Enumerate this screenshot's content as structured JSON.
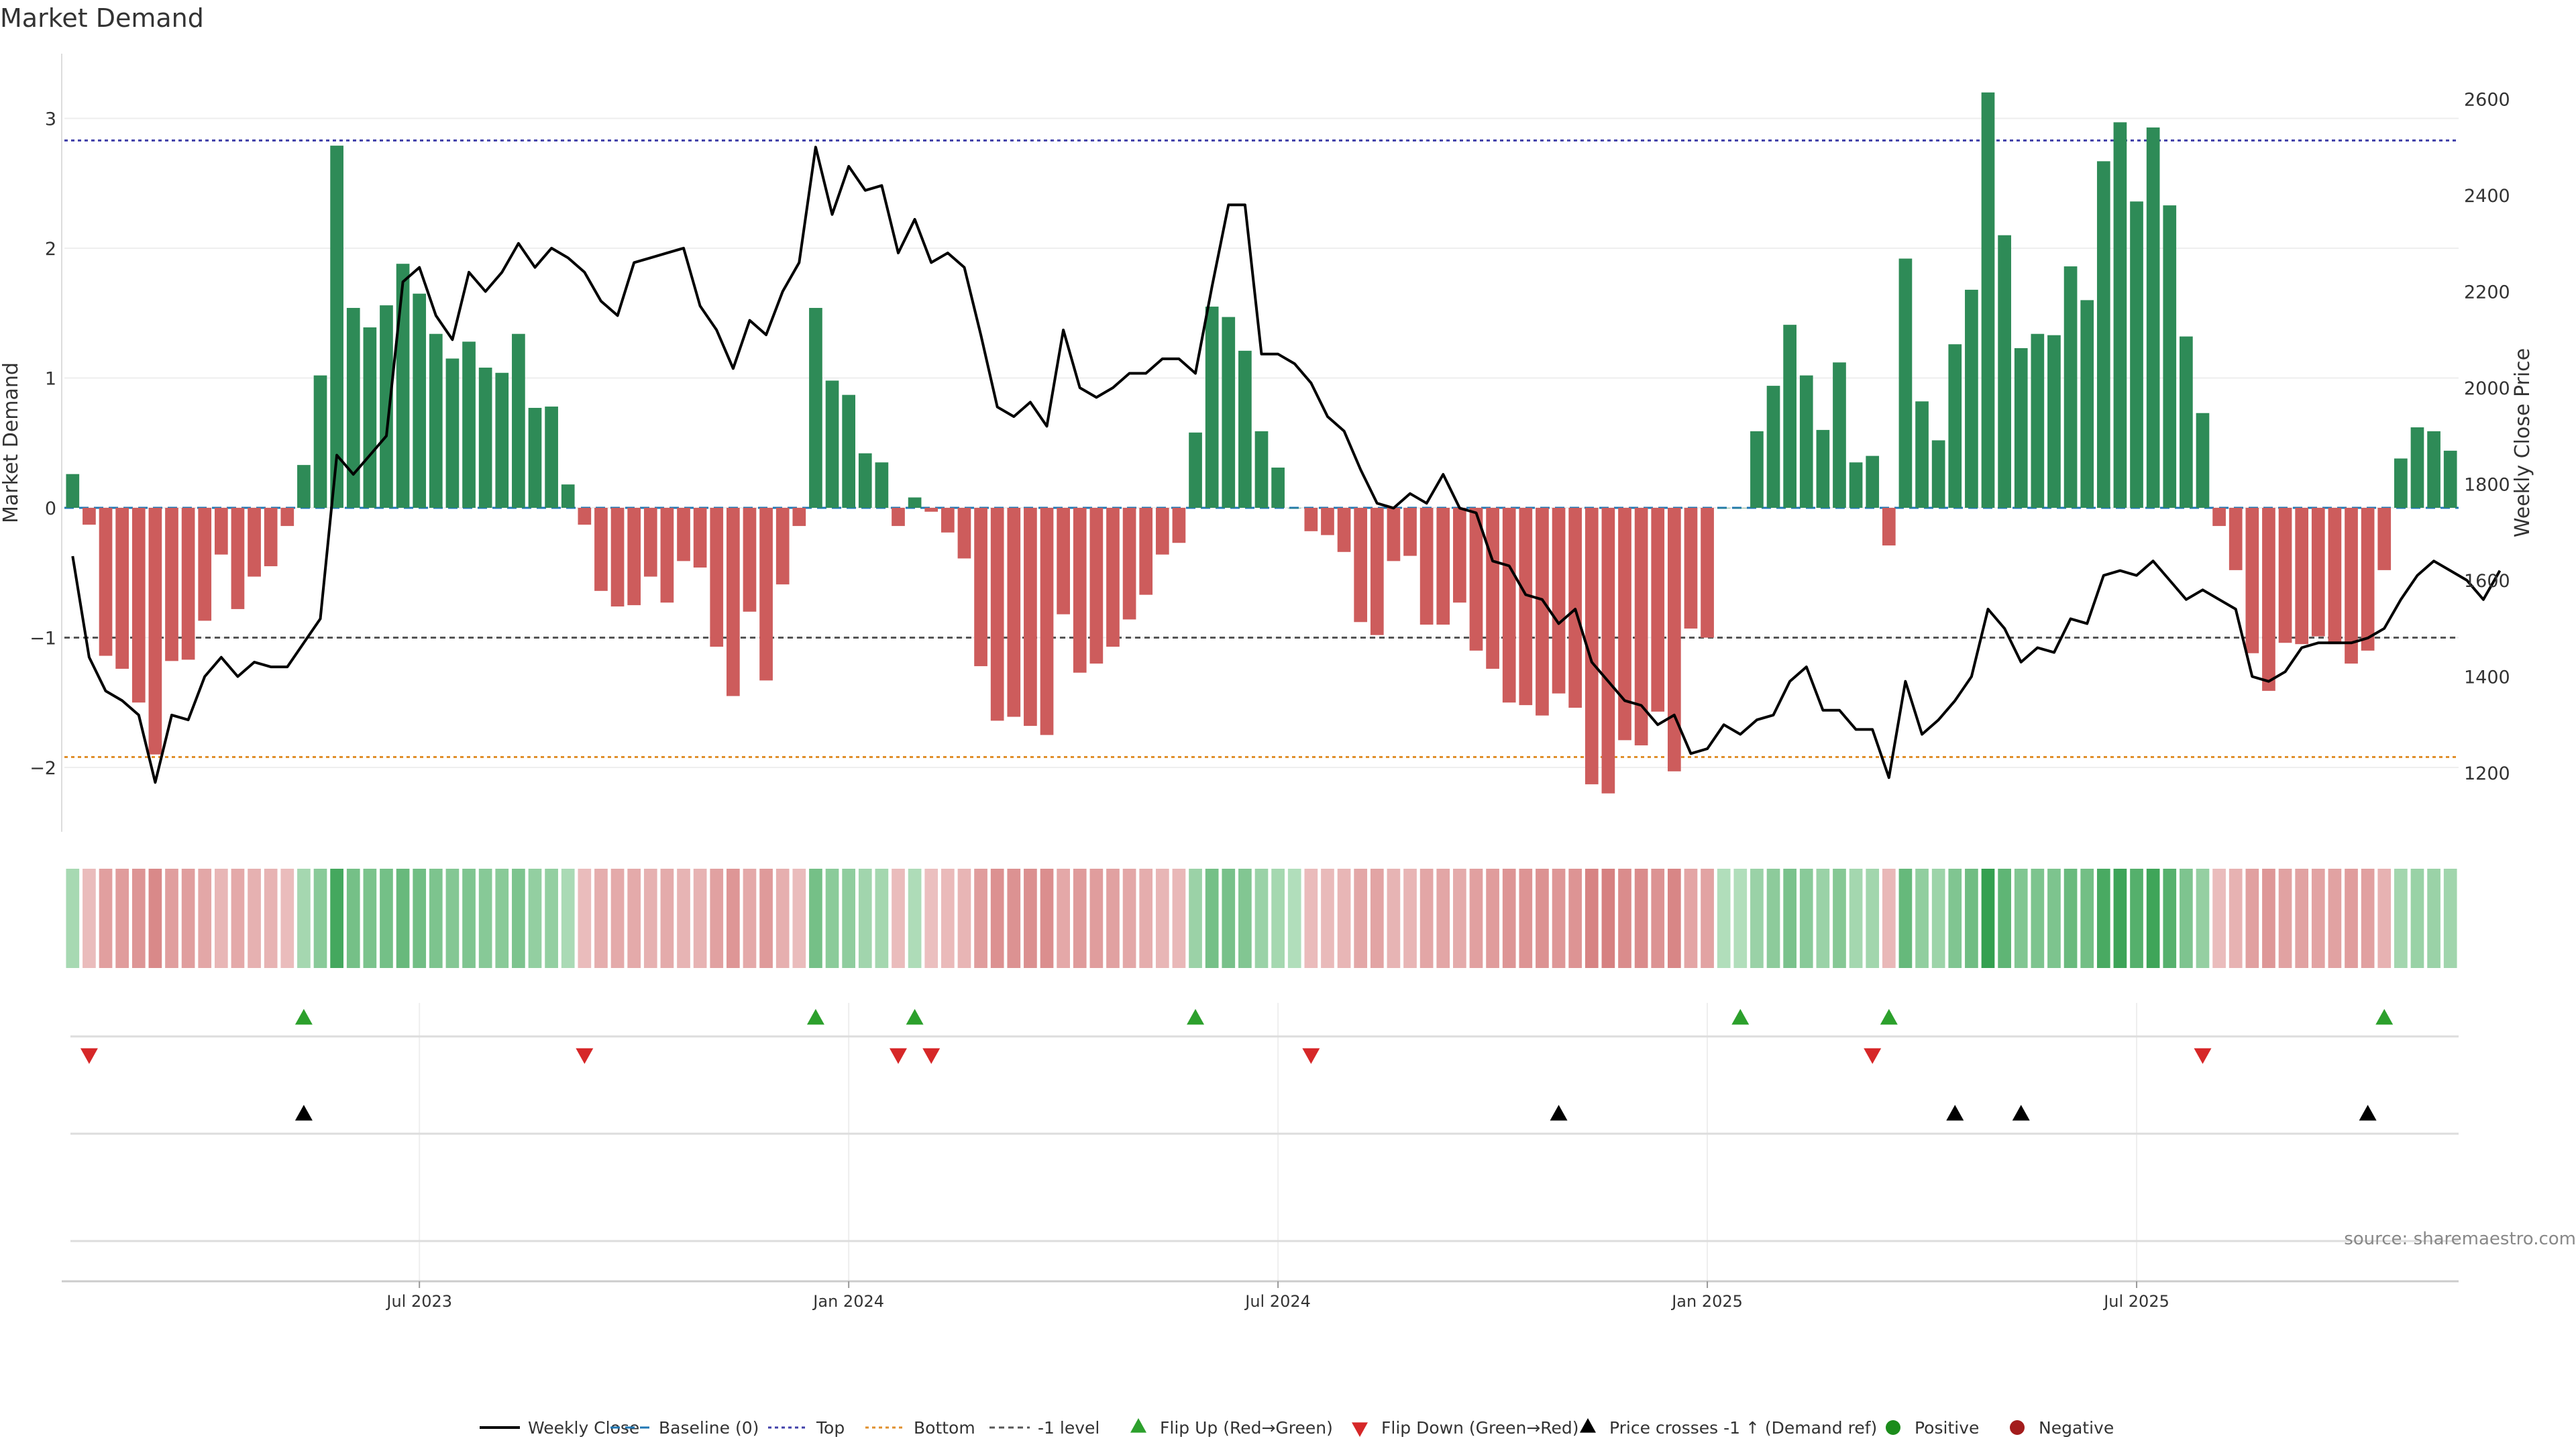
{
  "chart_data": {
    "type": "bar",
    "title": "Market Demand",
    "ylabel": "Market Demand",
    "y2label": "Weekly Close Price",
    "source": "source: sharemaestro.com",
    "ylim": [
      -2.5,
      3.3
    ],
    "y2lim": [
      1100,
      2630
    ],
    "y_ticks": [
      -2,
      -1,
      0,
      1,
      2,
      3
    ],
    "y_tick_labels": [
      "−2",
      "−1",
      "0",
      "1",
      "2",
      "3"
    ],
    "y2_ticks": [
      1200,
      1400,
      1600,
      1800,
      2000,
      2200,
      2400,
      2600
    ],
    "y2_tick_labels": [
      "1200",
      "1400",
      "1600",
      "1800",
      "2000",
      "2200",
      "2400",
      "2600"
    ],
    "x_tick_labels": [
      "Jul 2023",
      "Jan 2024",
      "Jul 2024",
      "Jan 2025",
      "Jul 2025"
    ],
    "x_tick_weeks": [
      21,
      47,
      73,
      99,
      125
    ],
    "reference_lines": {
      "top": 2.83,
      "bottom": -1.92,
      "minus_one": -1.0,
      "baseline": 0
    },
    "demand": [
      0.26,
      -0.13,
      -1.14,
      -1.24,
      -1.5,
      -1.9,
      -1.18,
      -1.17,
      -0.87,
      -0.36,
      -0.78,
      -0.53,
      -0.45,
      -0.14,
      0.33,
      1.02,
      2.79,
      1.54,
      1.39,
      1.56,
      1.88,
      1.65,
      1.34,
      1.15,
      1.28,
      1.08,
      1.04,
      1.34,
      0.77,
      0.78,
      0.18,
      -0.13,
      -0.64,
      -0.76,
      -0.75,
      -0.53,
      -0.73,
      -0.41,
      -0.46,
      -1.07,
      -1.45,
      -0.8,
      -1.33,
      -0.59,
      -0.14,
      1.54,
      0.98,
      0.87,
      0.42,
      0.35,
      -0.14,
      0.08,
      -0.03,
      -0.19,
      -0.39,
      -1.22,
      -1.64,
      -1.61,
      -1.68,
      -1.75,
      -0.82,
      -1.27,
      -1.2,
      -1.07,
      -0.86,
      -0.67,
      -0.36,
      -0.27,
      0.58,
      1.55,
      1.47,
      1.21,
      0.59,
      0.31,
      0.0,
      -0.18,
      -0.21,
      -0.34,
      -0.88,
      -0.98,
      -0.41,
      -0.37,
      -0.9,
      -0.9,
      -0.73,
      -1.1,
      -1.24,
      -1.5,
      -1.52,
      -1.6,
      -1.43,
      -1.54,
      -2.13,
      -2.2,
      -1.79,
      -1.83,
      -1.57,
      -2.03,
      -0.93,
      -1.0,
      0.0,
      0.0,
      0.59,
      0.94,
      1.41,
      1.02,
      0.6,
      1.12,
      0.35,
      0.4,
      -0.29,
      1.92,
      0.82,
      0.52,
      1.26,
      1.68,
      3.2,
      2.1,
      1.23,
      1.34,
      1.33,
      1.86,
      1.6,
      2.67,
      2.97,
      2.36,
      2.93,
      2.33,
      1.32,
      0.73,
      -0.14,
      -0.48,
      -1.12,
      -1.41,
      -1.04,
      -1.05,
      -0.99,
      -1.05,
      -1.2,
      -1.1,
      -0.48,
      0.38,
      0.62,
      0.59,
      0.44
    ],
    "weekly_close": [
      1650,
      1440,
      1370,
      1350,
      1320,
      1180,
      1320,
      1310,
      1400,
      1440,
      1400,
      1430,
      1420,
      1420,
      1470,
      1520,
      1860,
      1820,
      1860,
      1900,
      2220,
      2250,
      2150,
      2100,
      2240,
      2200,
      2240,
      2300,
      2250,
      2290,
      2270,
      2240,
      2180,
      2150,
      2260,
      2270,
      2280,
      2290,
      2170,
      2120,
      2040,
      2140,
      2110,
      2200,
      2260,
      2500,
      2360,
      2460,
      2410,
      2420,
      2280,
      2350,
      2260,
      2280,
      2250,
      2110,
      1960,
      1940,
      1970,
      1920,
      2120,
      2000,
      1980,
      2000,
      2030,
      2030,
      2060,
      2060,
      2030,
      2210,
      2380,
      2380,
      2070,
      2070,
      2050,
      2010,
      1940,
      1910,
      1830,
      1760,
      1750,
      1780,
      1760,
      1820,
      1750,
      1740,
      1640,
      1630,
      1570,
      1560,
      1510,
      1540,
      1430,
      1390,
      1350,
      1340,
      1300,
      1320,
      1240,
      1250,
      1300,
      1280,
      1310,
      1320,
      1390,
      1420,
      1330,
      1330,
      1290,
      1290,
      1190,
      1390,
      1280,
      1310,
      1350,
      1400,
      1540,
      1500,
      1430,
      1460,
      1450,
      1520,
      1510,
      1610,
      1620,
      1610,
      1640,
      1600,
      1560,
      1580,
      1560,
      1540,
      1400,
      1390,
      1410,
      1460,
      1470,
      1470,
      1470,
      1480,
      1500,
      1560,
      1610,
      1640,
      1620,
      1600,
      1560,
      1620
    ],
    "flip_up_weeks": [
      14,
      45,
      51,
      68,
      101,
      110,
      140
    ],
    "flip_down_weeks": [
      1,
      31,
      50,
      52,
      75,
      109,
      129
    ],
    "price_cross_weeks": [
      14,
      90,
      114,
      118,
      139
    ],
    "legend": [
      "Weekly Close",
      "Baseline (0)",
      "Top",
      "Bottom",
      "-1 level",
      "Flip Up (Red→Green)",
      "Flip Down (Green→Red)",
      "Price crosses -1 ↑ (Demand ref)",
      "Positive",
      "Negative"
    ],
    "colors": {
      "positive": "#2e8b57",
      "negative": "#cd5c5c",
      "flip_up": "#2ca02c",
      "flip_down": "#d62728",
      "price_line": "#000000",
      "top_line": "#3f3fa8",
      "bottom_line": "#e08f2c",
      "minus_one_line": "#555555",
      "baseline_line": "#1f77b4",
      "legend_positive": "#1b8c1b",
      "legend_negative": "#a31c1c"
    }
  }
}
